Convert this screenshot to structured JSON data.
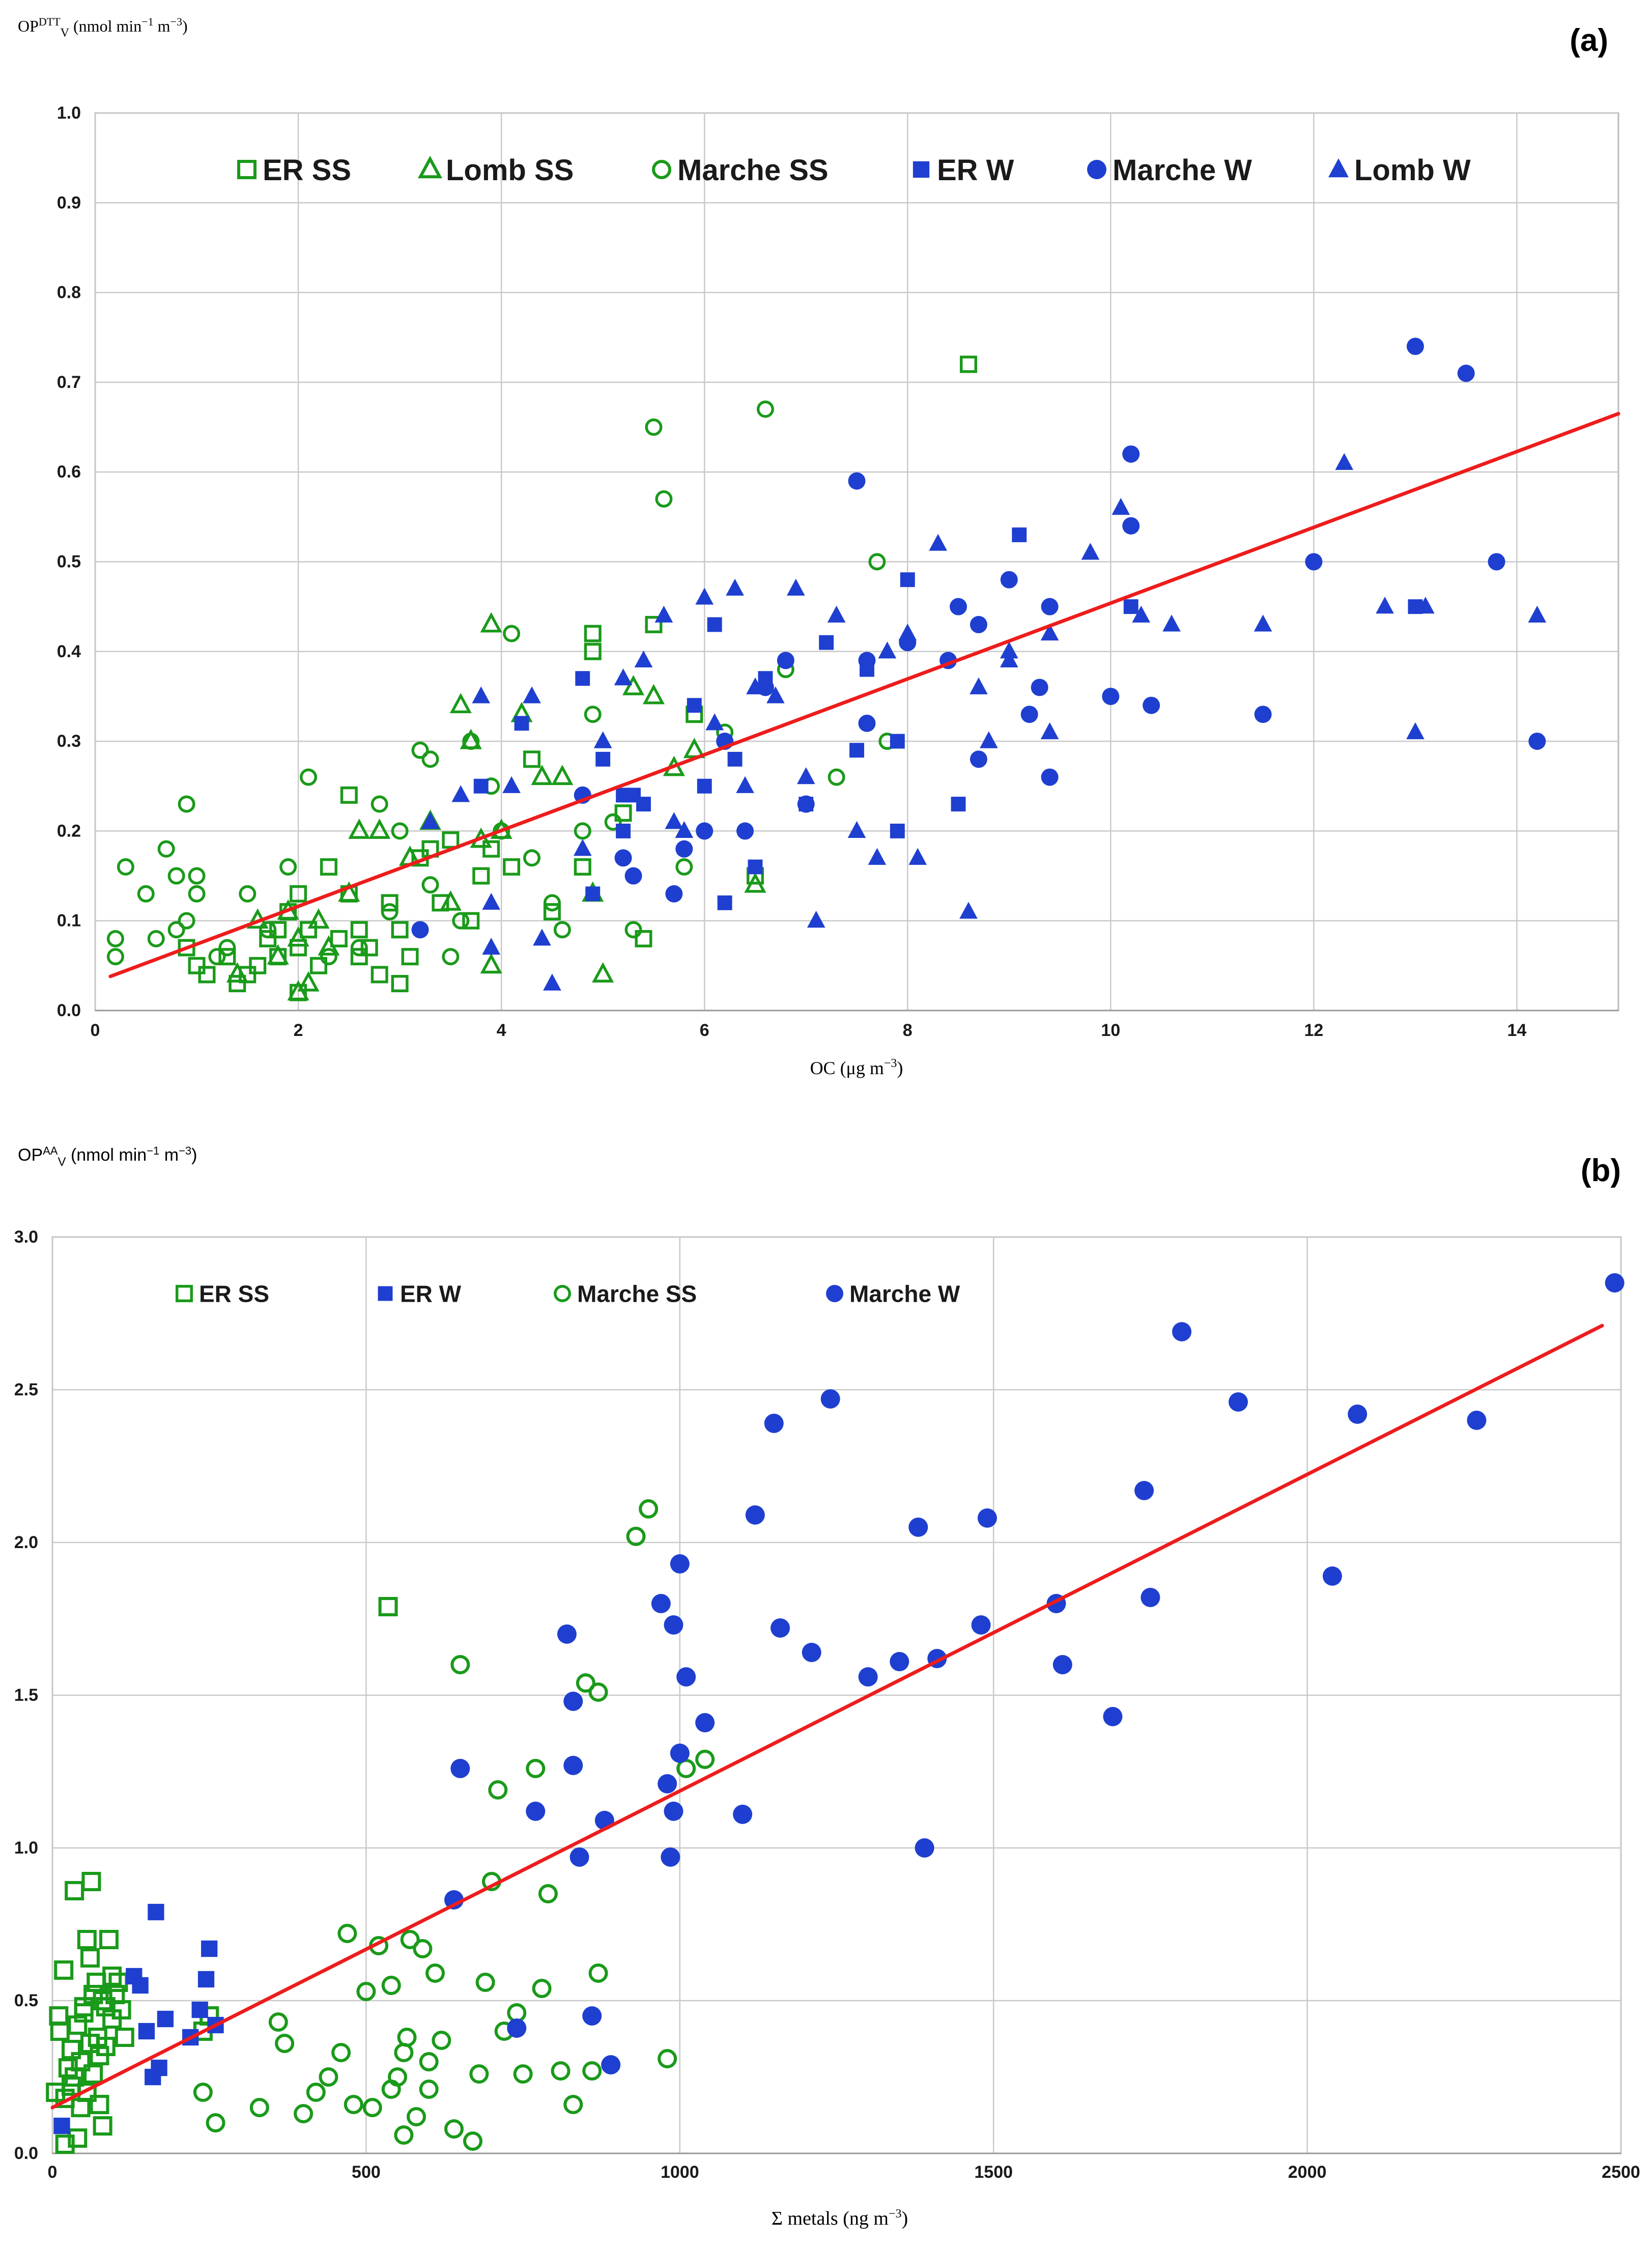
{
  "chart_data": [
    {
      "type": "scatter",
      "panel_label": "(a)",
      "ylabel_main": "OP",
      "ylabel_sup": "DTT",
      "ylabel_sub": "V",
      "ylabel_units": " (nmol min",
      "ylabel_units_sup1": "−1",
      "ylabel_units_mid": " m",
      "ylabel_units_sup2": "−3",
      "ylabel_units_end": ")",
      "xlabel_main": "OC (μg m",
      "xlabel_sup": "−3",
      "xlabel_end": ")",
      "xlim": [
        0,
        15
      ],
      "ylim": [
        0,
        1.0
      ],
      "xticks": [
        0,
        2,
        4,
        6,
        8,
        10,
        12,
        14
      ],
      "xtick_labels": [
        "0",
        "2",
        "4",
        "6",
        "8",
        "10",
        "12",
        "14"
      ],
      "yticks": [
        0,
        0.1,
        0.2,
        0.3,
        0.4,
        0.5,
        0.6,
        0.7,
        0.8,
        0.9,
        1.0
      ],
      "ytick_labels": [
        "0.0",
        "0.1",
        "0.2",
        "0.3",
        "0.4",
        "0.5",
        "0.6",
        "0.7",
        "0.8",
        "0.9",
        "1.0"
      ],
      "grid": true,
      "legend_position": "top",
      "regression": {
        "x": [
          0.15,
          15.0
        ],
        "y": [
          0.038,
          0.665
        ],
        "color": "#ee1c1c"
      },
      "series": [
        {
          "name": "ER SS",
          "marker": "square-open",
          "color": "#1a9a1a",
          "x": [
            0.9,
            1.0,
            1.1,
            1.3,
            1.5,
            1.6,
            1.7,
            1.8,
            1.8,
            1.9,
            2.0,
            2.0,
            2.2,
            2.3,
            2.4,
            2.5,
            2.5,
            2.6,
            2.7,
            2.8,
            2.9,
            3.0,
            3.0,
            3.1,
            3.3,
            3.4,
            3.5,
            3.7,
            3.8,
            3.9,
            4.1,
            4.3,
            4.5,
            4.8,
            4.9,
            4.9,
            5.2,
            5.4,
            5.5,
            5.9,
            6.5,
            8.6,
            2.0,
            2.6,
            1.4,
            3.2,
            2.1
          ],
          "y": [
            0.07,
            0.05,
            0.04,
            0.06,
            0.04,
            0.05,
            0.08,
            0.06,
            0.09,
            0.11,
            0.07,
            0.13,
            0.05,
            0.16,
            0.08,
            0.24,
            0.13,
            0.09,
            0.07,
            0.04,
            0.12,
            0.03,
            0.09,
            0.06,
            0.18,
            0.12,
            0.19,
            0.1,
            0.15,
            0.18,
            0.16,
            0.28,
            0.11,
            0.16,
            0.4,
            0.42,
            0.22,
            0.08,
            0.43,
            0.33,
            0.15,
            0.72,
            0.02,
            0.06,
            0.03,
            0.17,
            0.09
          ]
        },
        {
          "name": "Lomb SS",
          "marker": "triangle-open",
          "color": "#1a9a1a",
          "x": [
            1.4,
            1.6,
            1.8,
            2.0,
            2.1,
            2.2,
            2.3,
            2.5,
            2.6,
            2.8,
            3.1,
            3.3,
            3.5,
            3.6,
            3.7,
            3.8,
            3.9,
            3.9,
            4.0,
            4.2,
            4.4,
            4.6,
            4.9,
            5.0,
            5.3,
            5.5,
            5.7,
            5.9,
            6.5,
            2.0,
            1.9
          ],
          "y": [
            0.04,
            0.1,
            0.06,
            0.08,
            0.03,
            0.1,
            0.07,
            0.13,
            0.2,
            0.2,
            0.17,
            0.21,
            0.12,
            0.34,
            0.3,
            0.19,
            0.43,
            0.05,
            0.2,
            0.33,
            0.26,
            0.26,
            0.13,
            0.04,
            0.36,
            0.35,
            0.27,
            0.29,
            0.14,
            0.02,
            0.11
          ]
        },
        {
          "name": "Marche SS",
          "marker": "circle-open",
          "color": "#1a9a1a",
          "x": [
            0.2,
            0.3,
            0.5,
            0.7,
            0.8,
            0.9,
            0.9,
            1.0,
            1.0,
            1.2,
            1.5,
            1.7,
            1.9,
            2.1,
            2.3,
            2.6,
            2.8,
            3.0,
            3.2,
            3.3,
            3.5,
            3.7,
            3.9,
            4.0,
            4.1,
            4.3,
            4.5,
            4.6,
            4.8,
            4.9,
            5.1,
            5.3,
            5.5,
            5.6,
            5.8,
            6.2,
            6.6,
            6.8,
            7.3,
            7.7,
            7.8,
            0.2,
            0.6,
            1.3,
            2.9,
            3.6,
            3.3,
            0.8
          ],
          "y": [
            0.06,
            0.16,
            0.13,
            0.18,
            0.15,
            0.23,
            0.1,
            0.15,
            0.13,
            0.06,
            0.13,
            0.09,
            0.16,
            0.26,
            0.06,
            0.07,
            0.23,
            0.2,
            0.29,
            0.28,
            0.06,
            0.3,
            0.25,
            0.2,
            0.42,
            0.17,
            0.12,
            0.09,
            0.2,
            0.33,
            0.21,
            0.09,
            0.65,
            0.57,
            0.16,
            0.31,
            0.67,
            0.38,
            0.26,
            0.5,
            0.3,
            0.08,
            0.08,
            0.07,
            0.11,
            0.1,
            0.14,
            0.09
          ]
        },
        {
          "name": "ER W",
          "marker": "square",
          "color": "#1f3fd0",
          "x": [
            3.8,
            4.2,
            4.8,
            4.9,
            5.0,
            5.2,
            5.3,
            5.4,
            5.9,
            6.0,
            6.1,
            6.2,
            6.3,
            6.6,
            7.0,
            7.2,
            7.5,
            7.6,
            7.9,
            7.9,
            8.0,
            8.5,
            9.1,
            10.2,
            13.0,
            6.5,
            5.2
          ],
          "y": [
            0.25,
            0.32,
            0.37,
            0.13,
            0.28,
            0.2,
            0.24,
            0.23,
            0.34,
            0.25,
            0.43,
            0.12,
            0.28,
            0.37,
            0.23,
            0.41,
            0.29,
            0.38,
            0.2,
            0.3,
            0.48,
            0.23,
            0.53,
            0.45,
            0.45,
            0.16,
            0.24
          ]
        },
        {
          "name": "Marche W",
          "marker": "circle",
          "color": "#1f3fd0",
          "x": [
            3.2,
            4.8,
            5.2,
            5.3,
            5.7,
            6.0,
            6.2,
            6.4,
            6.6,
            6.8,
            7.0,
            7.5,
            7.6,
            8.0,
            8.4,
            8.5,
            8.7,
            8.7,
            9.0,
            9.2,
            9.3,
            9.4,
            9.4,
            10.0,
            10.2,
            10.2,
            10.4,
            11.5,
            12.0,
            13.0,
            13.5,
            13.8,
            14.2,
            7.6,
            5.8
          ],
          "y": [
            0.09,
            0.24,
            0.17,
            0.15,
            0.13,
            0.2,
            0.3,
            0.2,
            0.36,
            0.39,
            0.23,
            0.59,
            0.39,
            0.41,
            0.39,
            0.45,
            0.43,
            0.28,
            0.48,
            0.33,
            0.36,
            0.26,
            0.45,
            0.35,
            0.62,
            0.54,
            0.34,
            0.33,
            0.5,
            0.74,
            0.71,
            0.5,
            0.3,
            0.32,
            0.18
          ]
        },
        {
          "name": "Lomb W",
          "marker": "triangle",
          "color": "#1f3fd0",
          "x": [
            3.3,
            3.6,
            3.8,
            3.9,
            4.1,
            4.3,
            4.4,
            4.5,
            4.8,
            5.0,
            5.2,
            5.4,
            5.6,
            5.7,
            5.8,
            6.0,
            6.1,
            6.3,
            6.4,
            6.5,
            6.7,
            6.9,
            7.0,
            7.1,
            7.3,
            7.5,
            7.7,
            7.8,
            8.0,
            8.1,
            8.3,
            8.6,
            8.7,
            8.8,
            9.0,
            9.0,
            9.4,
            9.4,
            9.8,
            10.1,
            10.3,
            10.6,
            11.5,
            12.3,
            12.7,
            13.1,
            13.0,
            14.2,
            3.9
          ],
          "y": [
            0.21,
            0.24,
            0.35,
            0.12,
            0.25,
            0.35,
            0.08,
            0.03,
            0.18,
            0.3,
            0.37,
            0.39,
            0.44,
            0.21,
            0.2,
            0.46,
            0.32,
            0.47,
            0.25,
            0.36,
            0.35,
            0.47,
            0.26,
            0.1,
            0.44,
            0.2,
            0.17,
            0.4,
            0.42,
            0.17,
            0.52,
            0.11,
            0.36,
            0.3,
            0.4,
            0.39,
            0.42,
            0.31,
            0.51,
            0.56,
            0.44,
            0.43,
            0.43,
            0.61,
            0.45,
            0.45,
            0.31,
            0.44,
            0.07
          ]
        }
      ]
    },
    {
      "type": "scatter",
      "panel_label": "(b)",
      "ylabel_main": "OP",
      "ylabel_sup": "AA",
      "ylabel_sub": "V",
      "ylabel_units": " (nmol min",
      "ylabel_units_sup1": "−1",
      "ylabel_units_mid": " m",
      "ylabel_units_sup2": "−3",
      "ylabel_units_end": ")",
      "xlabel_main": "Σ metals (ng m",
      "xlabel_sup": "−3",
      "xlabel_end": ")",
      "xlim": [
        0,
        2500
      ],
      "ylim": [
        0,
        3.0
      ],
      "xticks": [
        0,
        500,
        1000,
        1500,
        2000,
        2500
      ],
      "xtick_labels": [
        "0",
        "500",
        "1000",
        "1500",
        "2000",
        "2500"
      ],
      "yticks": [
        0,
        0.5,
        1.0,
        1.5,
        2.0,
        2.5,
        3.0
      ],
      "ytick_labels": [
        "0.0",
        "0.5",
        "1.0",
        "1.5",
        "2.0",
        "2.5",
        "3.0"
      ],
      "grid": true,
      "legend_position": "top",
      "regression": {
        "x": [
          0,
          2470
        ],
        "y": [
          0.15,
          2.71
        ],
        "color": "#ee1c1c"
      },
      "series": [
        {
          "name": "ER SS",
          "marker": "square-open",
          "color": "#1a9a1a",
          "x": [
            5,
            10,
            12,
            18,
            20,
            25,
            30,
            35,
            40,
            45,
            50,
            55,
            60,
            62,
            65,
            70,
            72,
            75,
            80,
            85,
            90,
            95,
            100,
            105,
            110,
            115,
            45,
            55,
            65,
            75,
            85,
            95,
            30,
            40,
            50,
            60,
            70,
            80,
            240,
            250,
            535,
            20,
            35
          ],
          "y": [
            0.2,
            0.45,
            0.4,
            0.6,
            0.03,
            0.28,
            0.22,
            0.86,
            0.05,
            0.3,
            0.48,
            0.7,
            0.64,
            0.89,
            0.52,
            0.56,
            0.38,
            0.16,
            0.09,
            0.35,
            0.7,
            0.44,
            0.52,
            0.56,
            0.47,
            0.38,
            0.15,
            0.2,
            0.26,
            0.32,
            0.48,
            0.58,
            0.34,
            0.42,
            0.46,
            0.36,
            0.56,
            0.5,
            0.4,
            0.45,
            1.79,
            0.18,
            0.25
          ]
        },
        {
          "name": "ER W",
          "marker": "square",
          "color": "#1f3fd0",
          "x": [
            15,
            140,
            150,
            160,
            165,
            170,
            180,
            220,
            235,
            245,
            250,
            260,
            130
          ],
          "y": [
            0.09,
            0.55,
            0.4,
            0.25,
            0.79,
            0.28,
            0.44,
            0.38,
            0.47,
            0.57,
            0.67,
            0.42,
            0.58
          ]
        },
        {
          "name": "Marche SS",
          "marker": "circle-open",
          "color": "#1a9a1a",
          "x": [
            240,
            260,
            330,
            360,
            370,
            400,
            420,
            440,
            460,
            470,
            480,
            500,
            510,
            520,
            540,
            550,
            560,
            565,
            570,
            580,
            590,
            600,
            610,
            620,
            640,
            650,
            670,
            690,
            700,
            710,
            740,
            750,
            770,
            790,
            810,
            830,
            850,
            870,
            930,
            950,
            980,
            1010,
            1040,
            540,
            560,
            600,
            680,
            720,
            780,
            860,
            870
          ],
          "y": [
            0.2,
            0.1,
            0.15,
            0.43,
            0.36,
            0.13,
            0.2,
            0.25,
            0.33,
            0.72,
            0.16,
            0.53,
            0.15,
            0.68,
            0.55,
            0.25,
            0.06,
            0.38,
            0.7,
            0.12,
            0.67,
            0.21,
            0.59,
            0.37,
            0.08,
            1.6,
            0.04,
            0.56,
            0.89,
            1.19,
            0.46,
            0.26,
            1.26,
            0.85,
            0.27,
            0.16,
            1.54,
            0.59,
            2.02,
            2.11,
            0.31,
            1.26,
            1.29,
            0.21,
            0.33,
            0.3,
            0.26,
            0.4,
            0.54,
            0.27,
            1.51
          ]
        },
        {
          "name": "Marche W",
          "marker": "circle",
          "color": "#1f3fd0",
          "x": [
            640,
            650,
            740,
            770,
            820,
            830,
            840,
            860,
            880,
            890,
            970,
            980,
            985,
            990,
            1000,
            1010,
            1040,
            1120,
            1150,
            1160,
            1210,
            1240,
            1300,
            1350,
            1380,
            1390,
            1410,
            1480,
            1490,
            1600,
            1610,
            1690,
            1740,
            1750,
            1800,
            1890,
            2040,
            2080,
            2270,
            2490,
            830,
            990,
            1000,
            1100
          ],
          "y": [
            0.83,
            1.26,
            0.41,
            1.12,
            1.7,
            1.27,
            0.97,
            0.45,
            1.09,
            0.29,
            1.8,
            1.21,
            0.97,
            1.73,
            1.93,
            1.56,
            1.41,
            2.09,
            2.39,
            1.72,
            1.64,
            2.47,
            1.56,
            1.61,
            2.05,
            1.0,
            1.62,
            1.73,
            2.08,
            1.8,
            1.6,
            1.43,
            2.17,
            1.82,
            2.69,
            2.46,
            1.89,
            2.42,
            2.4,
            2.85,
            1.48,
            1.12,
            1.31,
            1.11
          ]
        }
      ]
    }
  ]
}
